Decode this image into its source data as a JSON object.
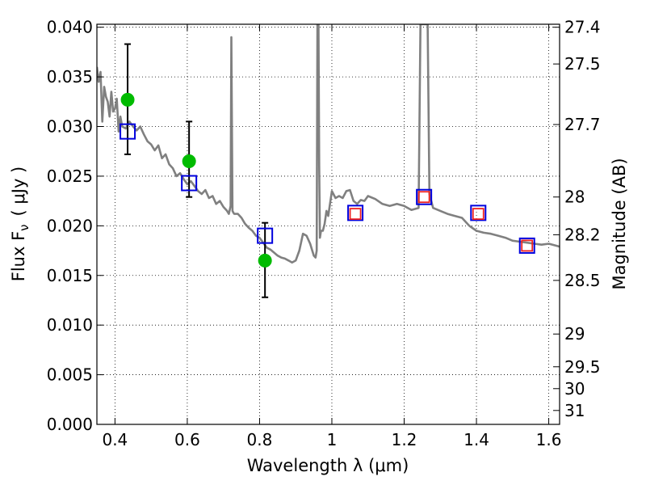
{
  "chart_data": {
    "type": "scatter",
    "xlabel": "Wavelength  λ (μm)",
    "ylabel": "Flux  F",
    "ylabel_sub": "ν",
    "ylabel_unit": "( μJy )",
    "y2label": "Magnitude (AB)",
    "xlim": [
      0.35,
      1.63
    ],
    "ylim": [
      0.0,
      0.0403
    ],
    "grid": true,
    "x_ticks": [
      {
        "v": 0.4,
        "label": "0.4"
      },
      {
        "v": 0.6,
        "label": "0.6"
      },
      {
        "v": 0.8,
        "label": "0.8"
      },
      {
        "v": 1.0,
        "label": "1"
      },
      {
        "v": 1.2,
        "label": "1.2"
      },
      {
        "v": 1.4,
        "label": "1.4"
      },
      {
        "v": 1.6,
        "label": "1.6"
      }
    ],
    "y_ticks": [
      {
        "v": 0.0,
        "label": "0.000"
      },
      {
        "v": 0.005,
        "label": "0.005"
      },
      {
        "v": 0.01,
        "label": "0.010"
      },
      {
        "v": 0.015,
        "label": "0.015"
      },
      {
        "v": 0.02,
        "label": "0.020"
      },
      {
        "v": 0.025,
        "label": "0.025"
      },
      {
        "v": 0.03,
        "label": "0.030"
      },
      {
        "v": 0.035,
        "label": "0.035"
      },
      {
        "v": 0.04,
        "label": "0.040"
      }
    ],
    "mag_ticks": [
      {
        "flux": 0.04,
        "label": "27.4"
      },
      {
        "flux": 0.0363,
        "label": "27.5"
      },
      {
        "flux": 0.0302,
        "label": "27.7"
      },
      {
        "flux": 0.0229,
        "label": "28"
      },
      {
        "flux": 0.0191,
        "label": "28.2"
      },
      {
        "flux": 0.0145,
        "label": "28.5"
      },
      {
        "flux": 0.0091,
        "label": "29"
      },
      {
        "flux": 0.0058,
        "label": "29.5"
      },
      {
        "flux": 0.0036,
        "label": "30"
      },
      {
        "flux": 0.0014,
        "label": "31"
      }
    ],
    "series": [
      {
        "style": "line",
        "color": "#808080",
        "x": [
          0.35,
          0.355,
          0.36,
          0.365,
          0.37,
          0.375,
          0.38,
          0.385,
          0.39,
          0.395,
          0.4,
          0.405,
          0.41,
          0.415,
          0.42,
          0.43,
          0.44,
          0.45,
          0.46,
          0.47,
          0.48,
          0.49,
          0.5,
          0.51,
          0.52,
          0.53,
          0.54,
          0.55,
          0.56,
          0.57,
          0.58,
          0.59,
          0.6,
          0.61,
          0.62,
          0.63,
          0.64,
          0.65,
          0.66,
          0.67,
          0.68,
          0.69,
          0.7,
          0.71,
          0.715,
          0.72,
          0.722,
          0.725,
          0.728,
          0.73,
          0.74,
          0.75,
          0.76,
          0.77,
          0.78,
          0.79,
          0.8,
          0.81,
          0.82,
          0.83,
          0.84,
          0.85,
          0.86,
          0.87,
          0.88,
          0.89,
          0.9,
          0.91,
          0.92,
          0.93,
          0.94,
          0.95,
          0.955,
          0.958,
          0.96,
          0.962,
          0.963,
          0.965,
          0.967,
          0.97,
          0.975,
          0.98,
          0.985,
          0.99,
          1.0,
          1.01,
          1.02,
          1.03,
          1.04,
          1.05,
          1.06,
          1.07,
          1.08,
          1.09,
          1.1,
          1.12,
          1.14,
          1.16,
          1.18,
          1.2,
          1.22,
          1.24,
          1.245,
          1.25,
          1.255,
          1.26,
          1.265,
          1.27,
          1.28,
          1.3,
          1.32,
          1.34,
          1.36,
          1.38,
          1.4,
          1.42,
          1.44,
          1.46,
          1.48,
          1.5,
          1.52,
          1.54,
          1.56,
          1.58,
          1.6,
          1.62,
          1.63
        ],
        "y": [
          0.036,
          0.0345,
          0.0355,
          0.0305,
          0.034,
          0.033,
          0.0325,
          0.031,
          0.0335,
          0.0315,
          0.0318,
          0.0328,
          0.0295,
          0.031,
          0.03,
          0.0298,
          0.0305,
          0.03,
          0.0296,
          0.03,
          0.0292,
          0.0285,
          0.0282,
          0.0276,
          0.0281,
          0.0268,
          0.0272,
          0.0262,
          0.0258,
          0.025,
          0.0253,
          0.0247,
          0.0242,
          0.0245,
          0.024,
          0.0235,
          0.0232,
          0.0236,
          0.0228,
          0.023,
          0.0222,
          0.0225,
          0.0219,
          0.0215,
          0.0212,
          0.022,
          0.039,
          0.0215,
          0.0213,
          0.0212,
          0.0212,
          0.0208,
          0.0202,
          0.0198,
          0.0195,
          0.019,
          0.0188,
          0.0183,
          0.0178,
          0.0176,
          0.0173,
          0.017,
          0.0168,
          0.0167,
          0.0165,
          0.0163,
          0.0165,
          0.0175,
          0.0192,
          0.019,
          0.0182,
          0.017,
          0.0168,
          0.0175,
          0.0403,
          0.0403,
          0.0403,
          0.026,
          0.0188,
          0.0195,
          0.0195,
          0.0202,
          0.0215,
          0.021,
          0.0235,
          0.0228,
          0.023,
          0.0228,
          0.0235,
          0.0236,
          0.0225,
          0.0222,
          0.0226,
          0.0225,
          0.023,
          0.0227,
          0.0222,
          0.022,
          0.0222,
          0.022,
          0.0216,
          0.0218,
          0.0403,
          0.0403,
          0.0403,
          0.0403,
          0.0403,
          0.0232,
          0.0218,
          0.0215,
          0.0212,
          0.021,
          0.0208,
          0.02,
          0.0195,
          0.0193,
          0.0192,
          0.019,
          0.0188,
          0.0185,
          0.0184,
          0.0183,
          0.0182,
          0.0181,
          0.0182,
          0.018,
          0.0179
        ]
      },
      {
        "style": "marker",
        "marker": "circle",
        "color": "#00bb00",
        "x": [
          0.435,
          0.605,
          0.815
        ],
        "y": [
          0.0327,
          0.0265,
          0.0165
        ]
      },
      {
        "style": "errorbar",
        "color": "#000000",
        "x": [
          0.435,
          0.605,
          0.815
        ],
        "y": [
          0.0327,
          0.0265,
          0.0165
        ],
        "ylow": [
          0.0272,
          0.0229,
          0.0128
        ],
        "yhigh": [
          0.0383,
          0.0305,
          0.0203
        ]
      },
      {
        "style": "marker",
        "marker": "square-open",
        "color": "#0000dd",
        "x": [
          0.435,
          0.605,
          0.815,
          1.065,
          1.255,
          1.405,
          1.54
        ],
        "y": [
          0.0295,
          0.0243,
          0.019,
          0.0213,
          0.0229,
          0.0213,
          0.018
        ]
      },
      {
        "style": "marker",
        "marker": "square-open",
        "color": "#ee2222",
        "x": [
          1.065,
          1.255,
          1.405,
          1.54
        ],
        "y": [
          0.0212,
          0.0229,
          0.0212,
          0.018
        ]
      }
    ]
  }
}
